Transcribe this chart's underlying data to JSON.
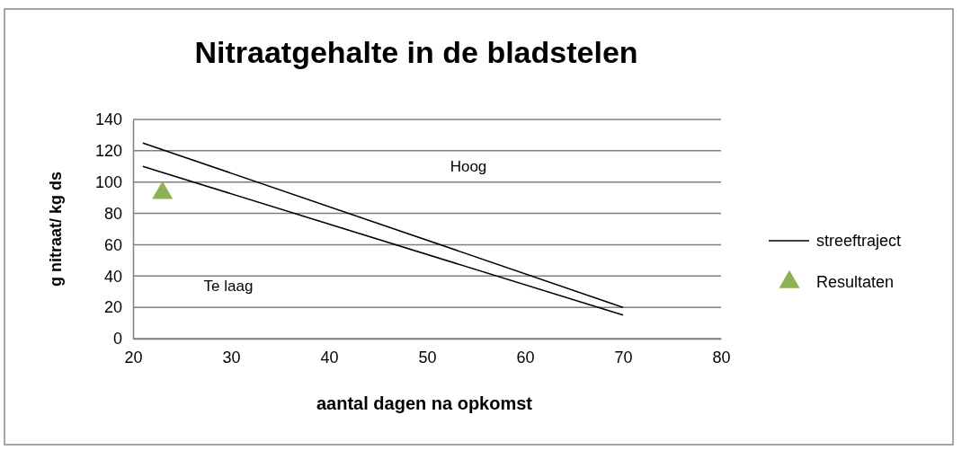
{
  "chart_data": {
    "type": "line",
    "title": "Nitraatgehalte in de bladstelen",
    "xlabel": "aantal dagen na opkomst",
    "ylabel": "g nitraat/ kg ds",
    "xlim": [
      20,
      80
    ],
    "xticks": [
      20,
      30,
      40,
      50,
      60,
      70,
      80
    ],
    "ylim": [
      0,
      140
    ],
    "yticks": [
      0,
      20,
      40,
      60,
      80,
      100,
      120,
      140
    ],
    "grid": "y",
    "legend": "right",
    "series": [
      {
        "name": "streeftraject",
        "color": "#000000",
        "x": [
          21,
          70
        ],
        "values": [
          125,
          20
        ],
        "marker": "none"
      },
      {
        "color": "#000000",
        "x": [
          21,
          70
        ],
        "values": [
          110,
          15
        ],
        "marker": "none"
      },
      {
        "name": "Resultaten",
        "type": "scatter",
        "color": "#8db255",
        "x": [
          23
        ],
        "values": [
          93
        ],
        "marker": "triangle"
      }
    ],
    "annotations": [
      "Hoog",
      "Te laag"
    ]
  }
}
